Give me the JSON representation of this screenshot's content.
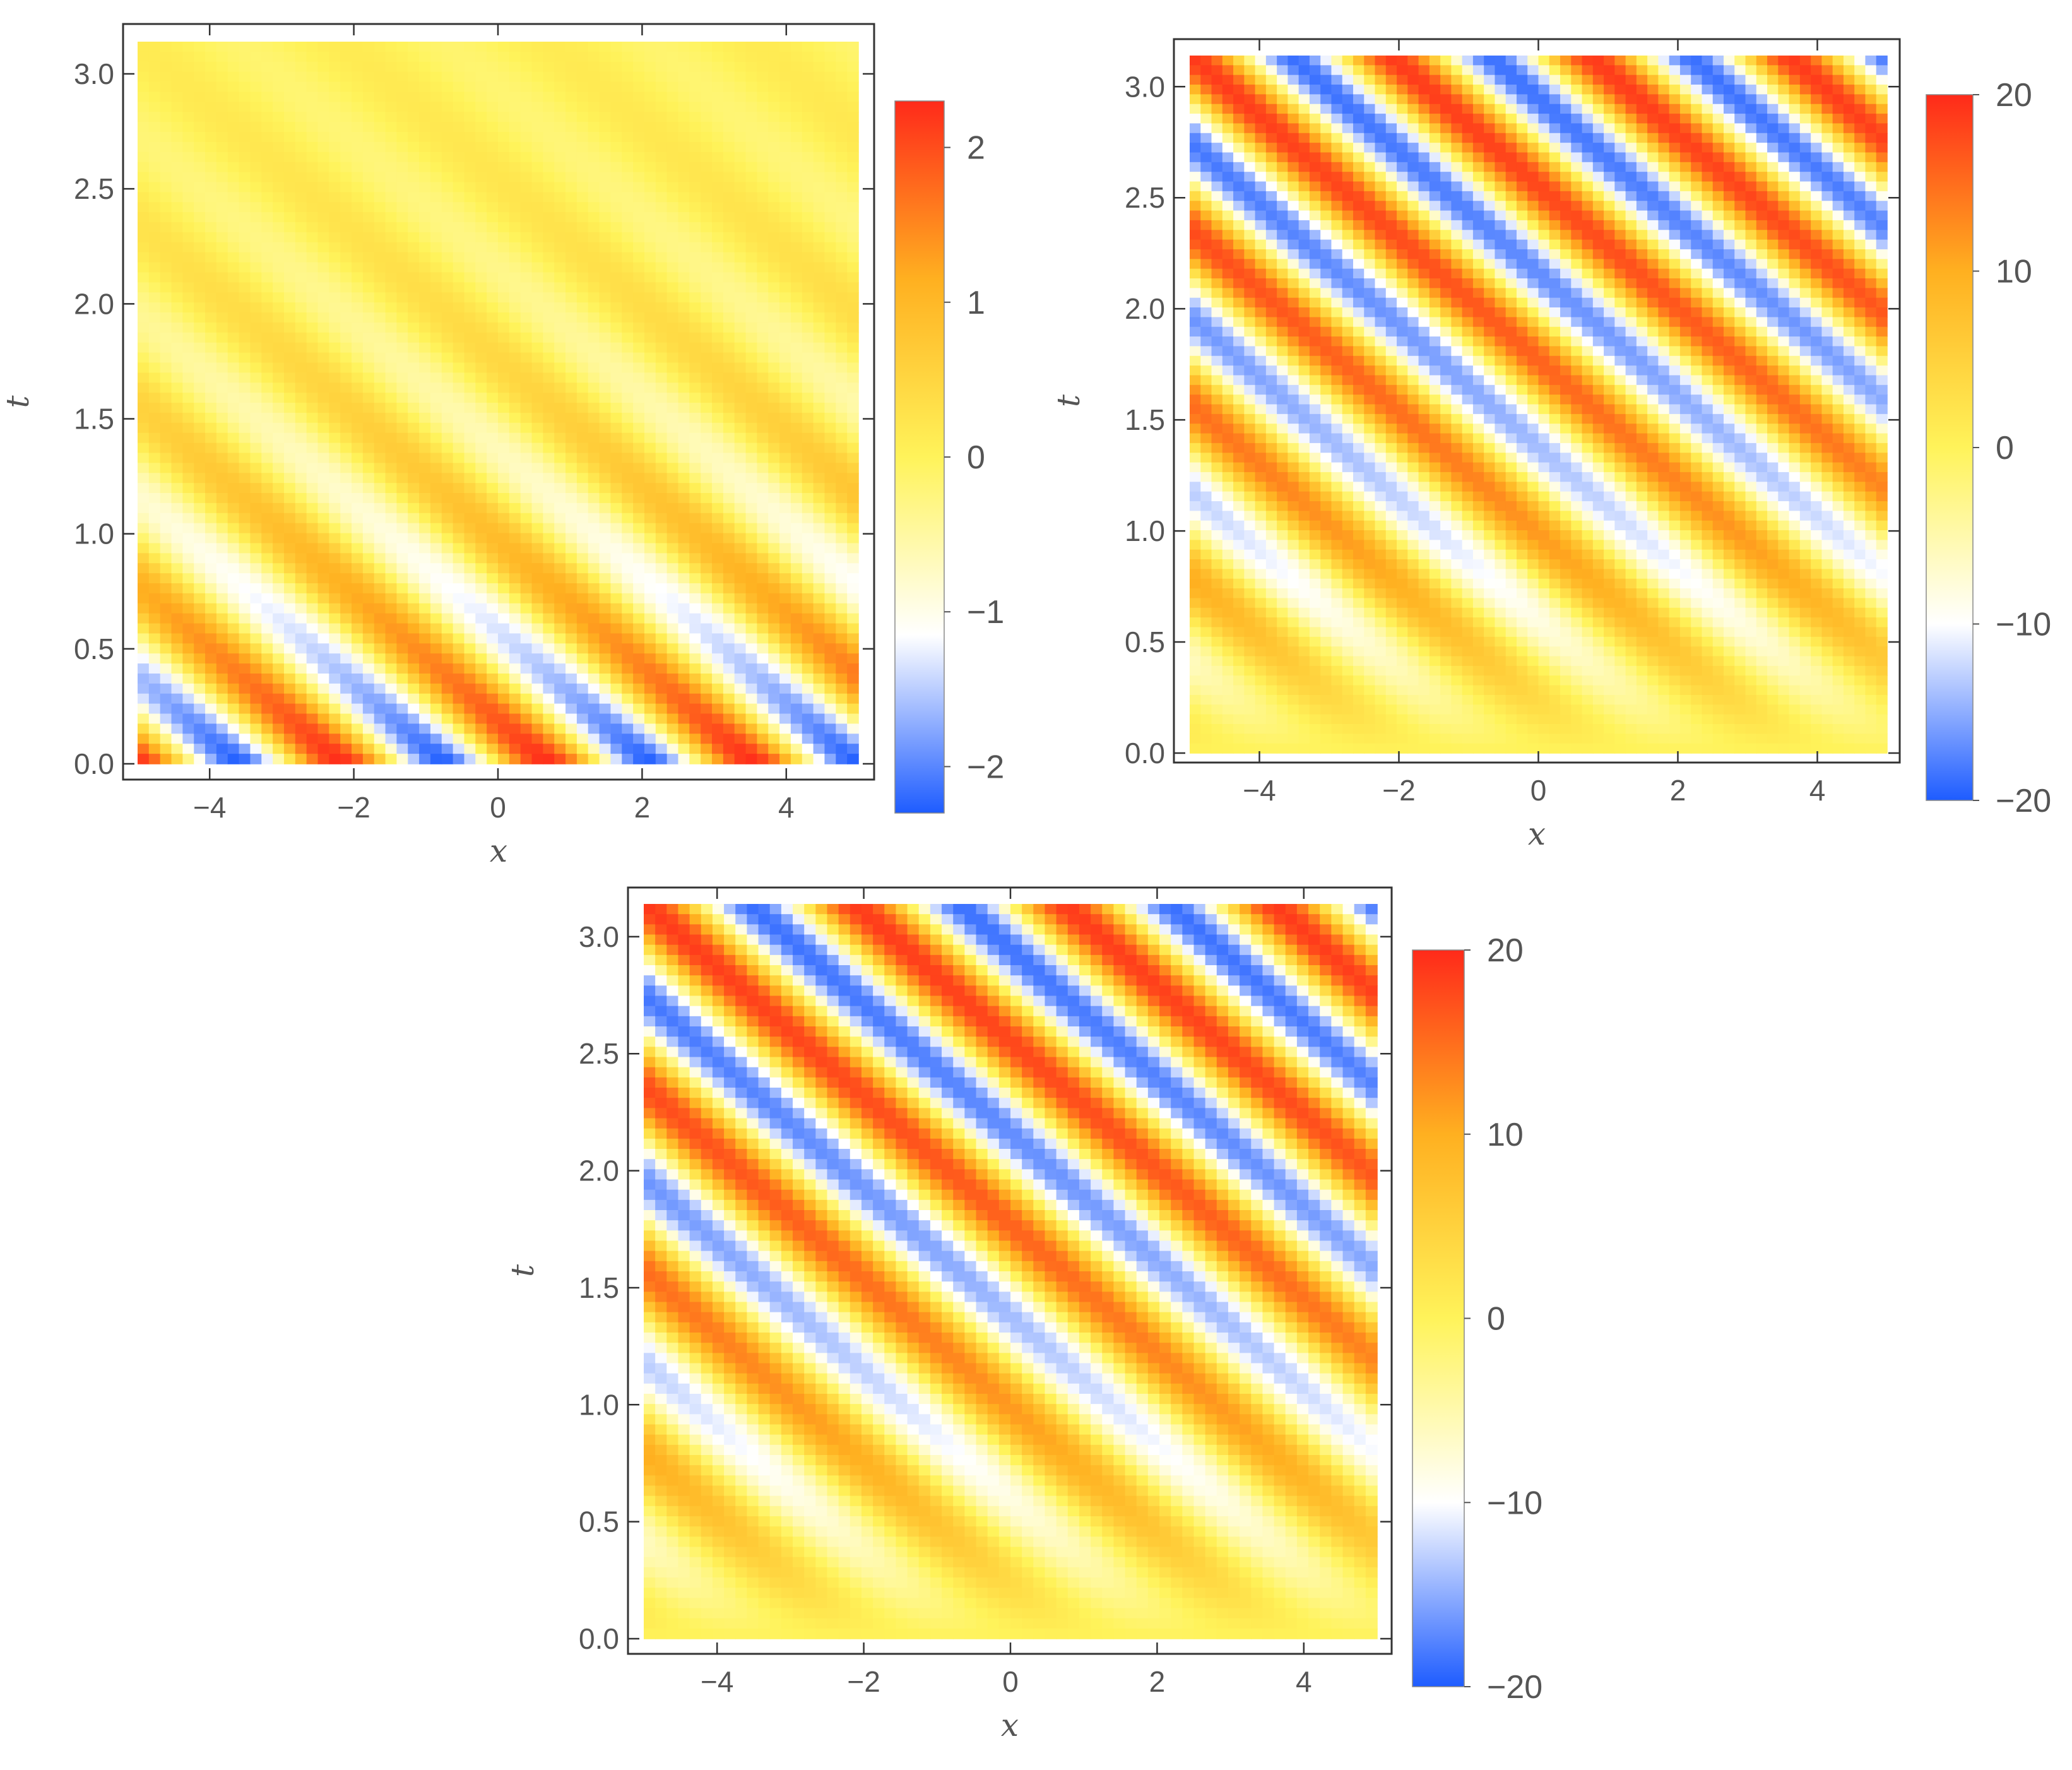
{
  "chart_data": [
    {
      "type": "heatmap",
      "title": "",
      "xlabel": "x",
      "ylabel": "t",
      "xlim": [
        -5,
        5
      ],
      "ylim": [
        0,
        3.14
      ],
      "x_ticks": [
        -4,
        -2,
        0,
        2,
        4
      ],
      "x_tick_labels": [
        "−4",
        "−2",
        "0",
        "2",
        "4"
      ],
      "y_ticks": [
        0.0,
        0.5,
        1.0,
        1.5,
        2.0,
        2.5,
        3.0
      ],
      "y_tick_labels": [
        "0.0",
        "0.5",
        "1.0",
        "1.5",
        "2.0",
        "2.5",
        "3.0"
      ],
      "colorbar": {
        "min": -2.3,
        "max": 2.3,
        "ticks": [
          -2,
          -1,
          0,
          1,
          2
        ],
        "tick_labels": [
          "−2",
          "−1",
          "0",
          "1",
          "2"
        ],
        "colors": [
          "#1e5cff",
          "#ffffff",
          "#fff35a",
          "#ffb020",
          "#ff2a1a"
        ]
      },
      "pattern": {
        "description_of_field": "diagonal travelling wave bands",
        "amplitude": 2.3,
        "decay_rate_in_t": 0.9,
        "k_x": 2.2,
        "omega_t": 8.0
      }
    },
    {
      "type": "heatmap",
      "title": "",
      "xlabel": "x",
      "ylabel": "t",
      "xlim": [
        -5,
        5
      ],
      "ylim": [
        0,
        3.14
      ],
      "x_ticks": [
        -4,
        -2,
        0,
        2,
        4
      ],
      "x_tick_labels": [
        "−4",
        "−2",
        "0",
        "2",
        "4"
      ],
      "y_ticks": [
        0.0,
        0.5,
        1.0,
        1.5,
        2.0,
        2.5,
        3.0
      ],
      "y_tick_labels": [
        "0.0",
        "0.5",
        "1.0",
        "1.5",
        "2.0",
        "2.5",
        "3.0"
      ],
      "colorbar": {
        "min": -20,
        "max": 20,
        "ticks": [
          -20,
          -10,
          0,
          10,
          20
        ],
        "tick_labels": [
          "−20",
          "−10",
          "0",
          "10",
          "20"
        ],
        "colors": [
          "#1e5cff",
          "#ffffff",
          "#fff35a",
          "#ffb020",
          "#ff2a1a"
        ]
      },
      "pattern": {
        "amplitude": 20,
        "growth_rate_in_t": 0.9,
        "k_x": 2.2,
        "omega_t": 8.0
      }
    },
    {
      "type": "heatmap",
      "title": "",
      "xlabel": "x",
      "ylabel": "t",
      "xlim": [
        -5,
        5
      ],
      "ylim": [
        0,
        3.14
      ],
      "x_ticks": [
        -4,
        -2,
        0,
        2,
        4
      ],
      "x_tick_labels": [
        "−4",
        "−2",
        "0",
        "2",
        "4"
      ],
      "y_ticks": [
        0.0,
        0.5,
        1.0,
        1.5,
        2.0,
        2.5,
        3.0
      ],
      "y_tick_labels": [
        "0.0",
        "0.5",
        "1.0",
        "1.5",
        "2.0",
        "2.5",
        "3.0"
      ],
      "colorbar": {
        "min": -20,
        "max": 20,
        "ticks": [
          -20,
          -10,
          0,
          10,
          20
        ],
        "tick_labels": [
          "−20",
          "−10",
          "0",
          "10",
          "20"
        ],
        "colors": [
          "#1e5cff",
          "#ffffff",
          "#fff35a",
          "#ffb020",
          "#ff2a1a"
        ]
      },
      "pattern": {
        "amplitude": 20,
        "growth_rate_in_t": 0.9,
        "k_x": 2.2,
        "omega_t": 8.0
      }
    }
  ]
}
